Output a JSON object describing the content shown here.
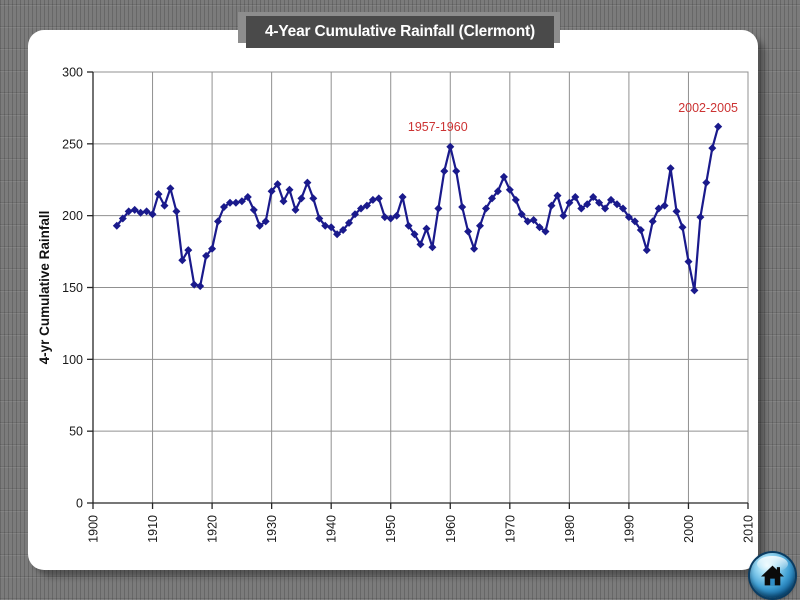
{
  "title_bar": {
    "title": "4-Year Cumulative Rainfall (Clermont)",
    "bg_color": "#4a4a4a",
    "text_color": "#ffffff"
  },
  "nav": {
    "home_icon": "home-icon",
    "home_color": "#2f8ec7"
  },
  "chart_data": {
    "type": "line",
    "title": "4-Year Cumulative Rainfall (Clermont)",
    "xlabel": "",
    "ylabel": "4-yr Cumulative Rainfall",
    "xlim": [
      1900,
      2010
    ],
    "ylim": [
      0,
      300
    ],
    "x_ticks": [
      1900,
      1910,
      1920,
      1930,
      1940,
      1950,
      1960,
      1970,
      1980,
      1990,
      2000,
      2010
    ],
    "y_ticks": [
      0,
      50,
      100,
      150,
      200,
      250,
      300
    ],
    "grid": true,
    "plot_bg": "#ffffff",
    "grid_color": "#909090",
    "axis_color": "#262626",
    "line_color": "#1a1a8c",
    "marker": "diamond",
    "annotation_color": "#cc3333",
    "annotations": [
      {
        "label": "1957-1960",
        "x": 1957.9,
        "y": 259
      },
      {
        "label": "2002-2005",
        "x": 2003.3,
        "y": 272
      }
    ],
    "series": [
      {
        "name": "4-yr cumulative rainfall",
        "x_start": 1904,
        "x_step": 1,
        "values": [
          193,
          198,
          203,
          204,
          202,
          203,
          201,
          215,
          207,
          219,
          203,
          169,
          176,
          152,
          151,
          172,
          177,
          196,
          206,
          209,
          209,
          210,
          213,
          204,
          193,
          196,
          217,
          222,
          210,
          218,
          204,
          212,
          223,
          212,
          198,
          193,
          192,
          187,
          190,
          195,
          201,
          205,
          207,
          211,
          212,
          199,
          198,
          200,
          213,
          193,
          187,
          180,
          191,
          178,
          205,
          231,
          248,
          231,
          206,
          189,
          177,
          193,
          205,
          212,
          217,
          227,
          218,
          211,
          201,
          196,
          197,
          192,
          189,
          207,
          214,
          200,
          209,
          213,
          205,
          208,
          213,
          209,
          205,
          211,
          208,
          205,
          199,
          196,
          190,
          176,
          196,
          205,
          207,
          233,
          203,
          192,
          168,
          148,
          199,
          223,
          247,
          262
        ]
      }
    ]
  }
}
